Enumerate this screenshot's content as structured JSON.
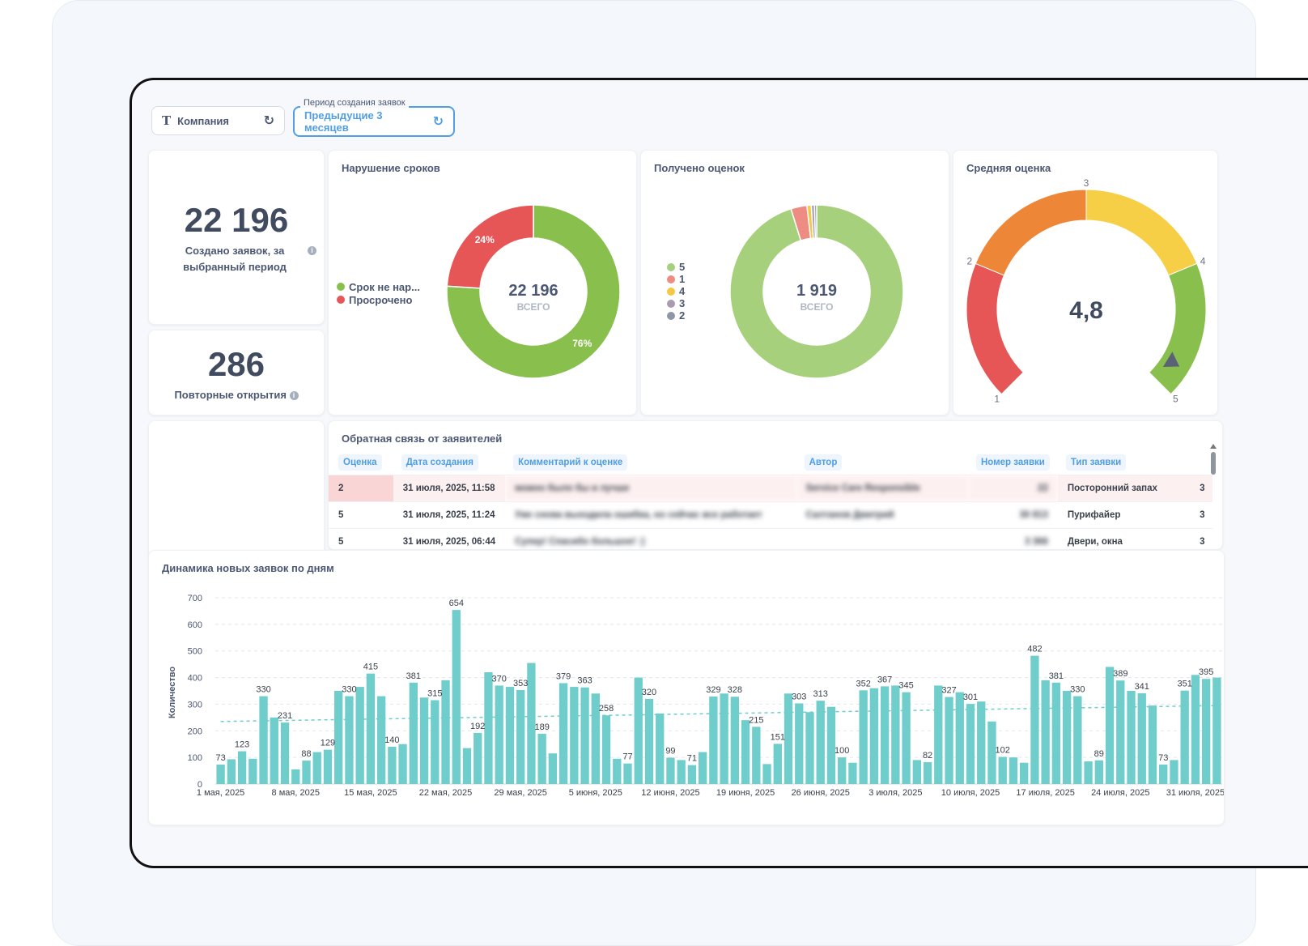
{
  "filters": {
    "company": {
      "label": "Компания",
      "icon": "text-icon"
    },
    "period": {
      "caption": "Период создания заявок",
      "value": "Предыдущие 3 месяцев"
    }
  },
  "kpis": {
    "created": {
      "value": "22 196",
      "label": "Создано заявок, за выбранный период"
    },
    "reopened": {
      "value": "286",
      "label": "Повторные открытия"
    }
  },
  "deadline_card": {
    "title": "Нарушение сроков",
    "legend": [
      {
        "label": "Срок не нар...",
        "color": "#88bf4d"
      },
      {
        "label": "Просрочено",
        "color": "#e75656"
      }
    ],
    "total": "22 196",
    "total_label": "ВСЕГО",
    "slices": [
      {
        "name": "Срок не нарушен",
        "pct": 76,
        "label": "76%",
        "color": "#88bf4d"
      },
      {
        "name": "Просрочено",
        "pct": 24,
        "label": "24%",
        "color": "#e75656"
      }
    ]
  },
  "ratings_card": {
    "title": "Получено оценок",
    "total": "1 919",
    "total_label": "ВСЕГО",
    "legend": [
      {
        "label": "5",
        "color": "#a6d07b"
      },
      {
        "label": "1",
        "color": "#ee8c83"
      },
      {
        "label": "4",
        "color": "#f6c745"
      },
      {
        "label": "3",
        "color": "#a99cb0"
      },
      {
        "label": "2",
        "color": "#8f96a8"
      }
    ],
    "slices": [
      {
        "name": "5",
        "pct": 95.2,
        "color": "#a6d07b"
      },
      {
        "name": "1",
        "pct": 3.0,
        "color": "#ee8c83"
      },
      {
        "name": "4",
        "pct": 0.8,
        "color": "#f6c745"
      },
      {
        "name": "3",
        "pct": 0.6,
        "color": "#a99cb0"
      },
      {
        "name": "2",
        "pct": 0.4,
        "color": "#8f96a8"
      }
    ]
  },
  "gauge_card": {
    "title": "Средняя оценка",
    "value": "4,8",
    "numeric_value": 4.8,
    "min": 1,
    "max": 5,
    "ticks": [
      "1",
      "2",
      "3",
      "4",
      "5"
    ],
    "segments": [
      {
        "from": 1,
        "to": 2,
        "color": "#e75656"
      },
      {
        "from": 2,
        "to": 3,
        "color": "#ee8637"
      },
      {
        "from": 3,
        "to": 4,
        "color": "#f7cf47"
      },
      {
        "from": 4,
        "to": 5,
        "color": "#88bf4d"
      }
    ]
  },
  "feedback": {
    "title": "Обратная связь от заявителей",
    "columns": [
      "Оценка",
      "Дата создания",
      "Комментарий к оценке",
      "Автор",
      "Номер заявки",
      "Тип заявки"
    ],
    "rows": [
      {
        "rating": "2",
        "date": "31 июля, 2025, 11:58",
        "comment": "можно было бы и лучше",
        "author": "Service Care Responsible",
        "ticket": "22",
        "type": "Посторонний запах",
        "extra": "3"
      },
      {
        "rating": "5",
        "date": "31 июля, 2025, 11:24",
        "comment": "Уже снова выходила ошибка, но сейчас все работает",
        "author": "Салтанов Дмитрий",
        "ticket": "30 813",
        "type": "Пурифайер",
        "extra": "3"
      },
      {
        "rating": "5",
        "date": "31 июля, 2025, 06:44",
        "comment": "Супер! Спасибо большое! :)",
        "author": "",
        "ticket": "3 366",
        "type": "Двери, окна",
        "extra": "3"
      }
    ]
  },
  "chart_data": {
    "type": "bar",
    "title": "Динамика новых заявок по дням",
    "ylabel": "Количество",
    "xlabel": "",
    "ylim": [
      0,
      700
    ],
    "yticks": [
      0,
      100,
      200,
      300,
      400,
      500,
      600,
      700
    ],
    "grid": true,
    "trendline": {
      "start": 235,
      "end": 295
    },
    "x_tick_labels": [
      "1 мая, 2025",
      "8 мая, 2025",
      "15 мая, 2025",
      "22 мая, 2025",
      "29 мая, 2025",
      "5 июня, 2025",
      "12 июня, 2025",
      "19 июня, 2025",
      "26 июня, 2025",
      "3 июля, 2025",
      "10 июля, 2025",
      "17 июля, 2025",
      "24 июля, 2025",
      "31 июля, 2025"
    ],
    "values": [
      73,
      93,
      123,
      95,
      330,
      250,
      231,
      55,
      88,
      120,
      129,
      350,
      330,
      365,
      415,
      330,
      140,
      150,
      381,
      325,
      315,
      390,
      654,
      135,
      192,
      420,
      370,
      365,
      353,
      455,
      189,
      115,
      379,
      365,
      363,
      340,
      258,
      95,
      77,
      400,
      320,
      265,
      99,
      90,
      71,
      120,
      329,
      340,
      328,
      240,
      215,
      75,
      151,
      340,
      303,
      270,
      313,
      290,
      100,
      80,
      352,
      360,
      367,
      370,
      345,
      90,
      82,
      370,
      327,
      345,
      301,
      310,
      235,
      102,
      100,
      80,
      482,
      390,
      381,
      350,
      330,
      85,
      89,
      440,
      389,
      350,
      341,
      295,
      73,
      90,
      351,
      410,
      395,
      400
    ],
    "value_labels": {
      "0": "73",
      "2": "123",
      "4": "330",
      "6": "231",
      "8": "88",
      "10": "129",
      "12": "330",
      "14": "415",
      "16": "140",
      "18": "381",
      "20": "315",
      "22": "654",
      "24": "192",
      "26": "370",
      "28": "353",
      "30": "189",
      "32": "379",
      "34": "363",
      "36": "258",
      "38": "77",
      "40": "320",
      "42": "99",
      "44": "71",
      "46": "329",
      "48": "328",
      "50": "215",
      "52": "151",
      "54": "303",
      "56": "313",
      "58": "100",
      "60": "352",
      "62": "367",
      "64": "345",
      "66": "82",
      "68": "327",
      "70": "301",
      "73": "102",
      "76": "482",
      "78": "381",
      "80": "330",
      "82": "89",
      "84": "389",
      "86": "341",
      "88": "73",
      "90": "351",
      "92": "395"
    },
    "colors": {
      "bar": "#6fcdcb",
      "trend": "#6fcdcb"
    }
  }
}
